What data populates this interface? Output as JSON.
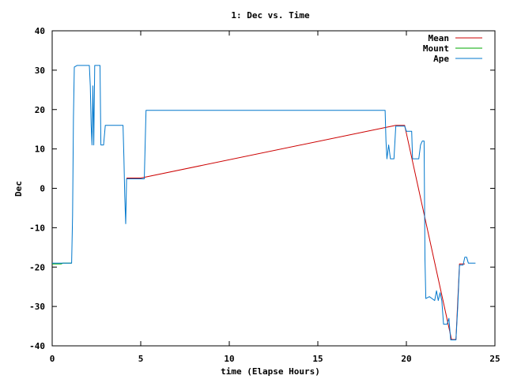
{
  "chart_data": {
    "type": "line",
    "title": "1: Dec vs. Time",
    "xlabel": "time (Elapse Hours)",
    "ylabel": "Dec",
    "xlim": [
      0,
      25
    ],
    "ylim": [
      -40,
      40
    ],
    "x_ticks": [
      0,
      5,
      10,
      15,
      20,
      25
    ],
    "y_ticks": [
      -40,
      -30,
      -20,
      -10,
      0,
      10,
      20,
      30,
      40
    ],
    "grid": false,
    "legend_position": "top-right",
    "series": [
      {
        "name": "Mean",
        "color": "#cc0000",
        "points": [
          [
            4.2,
            2.6
          ],
          [
            5.0,
            2.6
          ],
          [
            19.4,
            16.0
          ],
          [
            19.9,
            16.0
          ],
          [
            22.55,
            -38.4
          ],
          [
            22.8,
            -38.4
          ],
          [
            23.0,
            -19.2
          ],
          [
            23.3,
            -19.2
          ]
        ]
      },
      {
        "name": "Mount",
        "color": "#00aa00",
        "points": [
          [
            0.0,
            -19.2
          ],
          [
            0.5,
            -19.2
          ],
          [
            0.6,
            -19.0
          ],
          [
            1.1,
            -19.0
          ]
        ]
      },
      {
        "name": "Ape",
        "color": "#0077cc",
        "points": [
          [
            0.0,
            -19.0
          ],
          [
            1.1,
            -19.0
          ],
          [
            1.15,
            -7.0
          ],
          [
            1.2,
            18.0
          ],
          [
            1.25,
            30.8
          ],
          [
            1.4,
            31.2
          ],
          [
            2.1,
            31.2
          ],
          [
            2.15,
            26.0
          ],
          [
            2.2,
            16.0
          ],
          [
            2.25,
            11.0
          ],
          [
            2.3,
            26.0
          ],
          [
            2.35,
            11.0
          ],
          [
            2.4,
            31.2
          ],
          [
            2.7,
            31.2
          ],
          [
            2.75,
            11.0
          ],
          [
            2.9,
            11.0
          ],
          [
            3.0,
            16.0
          ],
          [
            4.0,
            16.0
          ],
          [
            4.05,
            8.0
          ],
          [
            4.1,
            -2.0
          ],
          [
            4.15,
            -9.0
          ],
          [
            4.2,
            2.4
          ],
          [
            5.0,
            2.4
          ],
          [
            5.2,
            2.4
          ],
          [
            5.3,
            19.8
          ],
          [
            18.8,
            19.8
          ],
          [
            18.85,
            12.0
          ],
          [
            18.9,
            7.5
          ],
          [
            19.0,
            11.0
          ],
          [
            19.1,
            7.5
          ],
          [
            19.3,
            7.5
          ],
          [
            19.4,
            15.8
          ],
          [
            19.9,
            15.8
          ],
          [
            20.0,
            14.5
          ],
          [
            20.3,
            14.5
          ],
          [
            20.35,
            7.5
          ],
          [
            20.7,
            7.5
          ],
          [
            20.8,
            11.0
          ],
          [
            20.9,
            12.0
          ],
          [
            21.0,
            12.0
          ],
          [
            21.05,
            -18.0
          ],
          [
            21.1,
            -28.0
          ],
          [
            21.3,
            -27.5
          ],
          [
            21.6,
            -28.5
          ],
          [
            21.7,
            -26.0
          ],
          [
            21.8,
            -28.5
          ],
          [
            21.9,
            -26.5
          ],
          [
            22.0,
            -28.5
          ],
          [
            22.1,
            -34.5
          ],
          [
            22.3,
            -34.5
          ],
          [
            22.4,
            -33.0
          ],
          [
            22.5,
            -38.5
          ],
          [
            22.8,
            -38.5
          ],
          [
            22.9,
            -30.0
          ],
          [
            23.0,
            -19.5
          ],
          [
            23.2,
            -19.5
          ],
          [
            23.3,
            -17.5
          ],
          [
            23.4,
            -17.5
          ],
          [
            23.5,
            -19.0
          ],
          [
            23.9,
            -19.0
          ]
        ]
      }
    ]
  }
}
